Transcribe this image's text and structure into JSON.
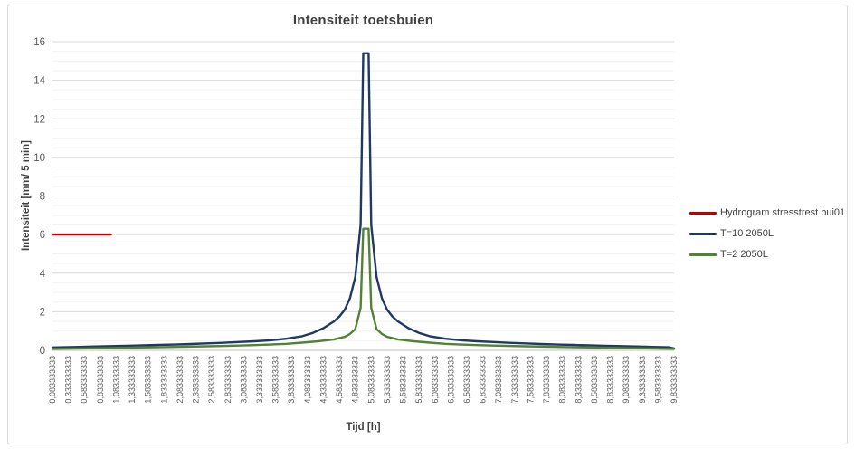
{
  "chart_data": {
    "type": "line",
    "title": "Intensiteit toetsbuien",
    "xlabel": "Tijd [h]",
    "ylabel": "Intensiteit [mm/ 5 min]",
    "ylim": [
      0,
      16
    ],
    "xlim": [
      0.0833,
      9.8333
    ],
    "y_major_step": 2,
    "y_minor_step": 0.5,
    "grid": true,
    "legend_position": "right",
    "y_tick_labels": [
      "0",
      "2",
      "4",
      "6",
      "8",
      "10",
      "12",
      "14",
      "16"
    ],
    "x_tick_step": 0.25,
    "x_tick_labels": [
      "0,083333333",
      "0,333333333",
      "0,583333333",
      "0,833333333",
      "1,083333333",
      "1,333333333",
      "1,583333333",
      "1,833333333",
      "2,083333333",
      "2,333333333",
      "2,583333333",
      "2,833333333",
      "3,083333333",
      "3,333333333",
      "3,583333333",
      "3,833333333",
      "4,083333333",
      "4,333333333",
      "4,583333333",
      "4,833333333",
      "5,083333333",
      "5,333333333",
      "5,583333333",
      "5,833333333",
      "6,083333333",
      "6,333333333",
      "6,583333333",
      "6,833333333",
      "7,083333333",
      "7,333333333",
      "7,583333333",
      "7,833333333",
      "8,083333333",
      "8,333333333",
      "8,583333333",
      "8,833333333",
      "9,083333333",
      "9,333333333",
      "9,583333333",
      "9,833333333"
    ],
    "series": [
      {
        "name": "Hydrogram stresstrest bui01",
        "color": "#c00000",
        "points": [
          [
            0.0833,
            6.0
          ],
          [
            1.0,
            6.0
          ]
        ]
      },
      {
        "name": "T=10 2050L",
        "color": "#1f3864",
        "points": [
          [
            0.0833,
            0.15
          ],
          [
            0.25,
            0.16
          ],
          [
            0.5,
            0.18
          ],
          [
            0.75,
            0.2
          ],
          [
            1.0,
            0.22
          ],
          [
            1.25,
            0.24
          ],
          [
            1.5,
            0.26
          ],
          [
            1.75,
            0.28
          ],
          [
            2.0,
            0.3
          ],
          [
            2.25,
            0.33
          ],
          [
            2.5,
            0.36
          ],
          [
            2.75,
            0.39
          ],
          [
            3.0,
            0.43
          ],
          [
            3.25,
            0.47
          ],
          [
            3.5,
            0.52
          ],
          [
            3.75,
            0.6
          ],
          [
            4.0,
            0.73
          ],
          [
            4.1667,
            0.9
          ],
          [
            4.3333,
            1.15
          ],
          [
            4.5,
            1.5
          ],
          [
            4.5833,
            1.75
          ],
          [
            4.6667,
            2.1
          ],
          [
            4.75,
            2.7
          ],
          [
            4.8333,
            3.8
          ],
          [
            4.9167,
            6.5
          ],
          [
            4.9583,
            15.4
          ],
          [
            5.0417,
            15.4
          ],
          [
            5.0833,
            6.5
          ],
          [
            5.1667,
            3.8
          ],
          [
            5.25,
            2.7
          ],
          [
            5.3333,
            2.1
          ],
          [
            5.4167,
            1.75
          ],
          [
            5.5,
            1.5
          ],
          [
            5.6667,
            1.15
          ],
          [
            5.8333,
            0.9
          ],
          [
            6.0,
            0.73
          ],
          [
            6.25,
            0.6
          ],
          [
            6.5,
            0.52
          ],
          [
            6.75,
            0.47
          ],
          [
            7.0,
            0.43
          ],
          [
            7.25,
            0.39
          ],
          [
            7.5,
            0.36
          ],
          [
            7.75,
            0.33
          ],
          [
            8.0,
            0.3
          ],
          [
            8.25,
            0.28
          ],
          [
            8.5,
            0.26
          ],
          [
            8.75,
            0.24
          ],
          [
            9.0,
            0.22
          ],
          [
            9.25,
            0.2
          ],
          [
            9.5,
            0.18
          ],
          [
            9.75,
            0.16
          ],
          [
            9.8333,
            0.1
          ]
        ]
      },
      {
        "name": "T=2 2050L",
        "color": "#548235",
        "points": [
          [
            0.0833,
            0.08
          ],
          [
            0.5,
            0.1
          ],
          [
            1.0,
            0.12
          ],
          [
            1.5,
            0.15
          ],
          [
            2.0,
            0.18
          ],
          [
            2.5,
            0.21
          ],
          [
            3.0,
            0.25
          ],
          [
            3.25,
            0.27
          ],
          [
            3.5,
            0.3
          ],
          [
            3.75,
            0.34
          ],
          [
            4.0,
            0.4
          ],
          [
            4.25,
            0.47
          ],
          [
            4.5,
            0.57
          ],
          [
            4.6667,
            0.7
          ],
          [
            4.75,
            0.85
          ],
          [
            4.8333,
            1.1
          ],
          [
            4.9167,
            2.2
          ],
          [
            4.9583,
            6.3
          ],
          [
            5.0417,
            6.3
          ],
          [
            5.0833,
            2.2
          ],
          [
            5.1667,
            1.1
          ],
          [
            5.25,
            0.85
          ],
          [
            5.3333,
            0.7
          ],
          [
            5.5,
            0.57
          ],
          [
            5.75,
            0.47
          ],
          [
            6.0,
            0.4
          ],
          [
            6.25,
            0.34
          ],
          [
            6.5,
            0.3
          ],
          [
            6.75,
            0.27
          ],
          [
            7.0,
            0.25
          ],
          [
            7.5,
            0.21
          ],
          [
            8.0,
            0.18
          ],
          [
            8.5,
            0.15
          ],
          [
            9.0,
            0.12
          ],
          [
            9.5,
            0.1
          ],
          [
            9.8333,
            0.08
          ]
        ]
      }
    ],
    "style": {
      "major_grid_color": "#d9d9d9",
      "minor_grid_color": "#f2f2f2",
      "axis_line_color": "#bfbfbf",
      "tick_label_color": "#595959",
      "title_color": "#404040"
    }
  }
}
